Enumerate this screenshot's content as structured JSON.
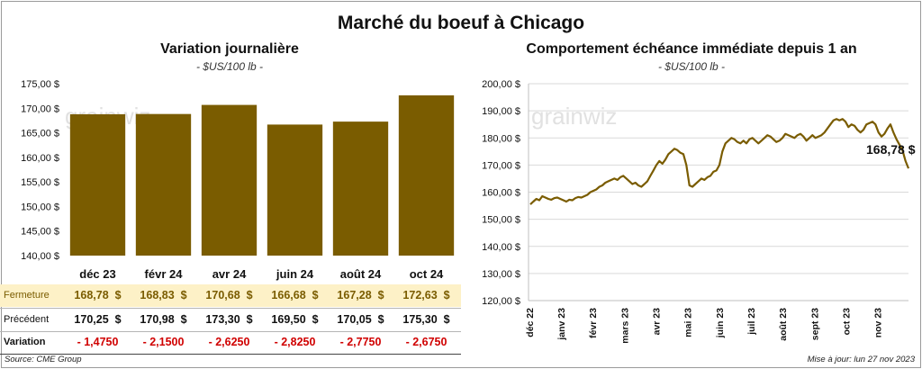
{
  "main_title": "Marché du boeuf à Chicago",
  "chart_data": [
    {
      "type": "bar",
      "title": "Variation  journalière",
      "subtitle": "- $US/100 lb -",
      "categories": [
        "déc 23",
        "févr 24",
        "avr 24",
        "juin 24",
        "août 24",
        "oct 24"
      ],
      "values": [
        168.78,
        168.83,
        170.68,
        166.68,
        167.28,
        172.63
      ],
      "ylim": [
        140,
        175
      ],
      "yticks": [
        "140,00 $",
        "145,00 $",
        "150,00 $",
        "155,00 $",
        "160,00 $",
        "165,00 $",
        "170,00 $",
        "175,00 $"
      ],
      "color": "#7a5c00",
      "watermark": "grainwiz",
      "grid": false
    },
    {
      "type": "line",
      "title": "Comportement  échéance immédiate depuis 1 an",
      "subtitle": "- $US/100 lb -",
      "xticks": [
        "déc 22",
        "janv 23",
        "févr 23",
        "mars 23",
        "avr 23",
        "mai 23",
        "juin 23",
        "juil 23",
        "août 23",
        "sept 23",
        "oct 23",
        "nov 23"
      ],
      "ylim": [
        120,
        200
      ],
      "yticks": [
        "120,00 $",
        "130,00 $",
        "140,00 $",
        "150,00 $",
        "160,00 $",
        "170,00 $",
        "180,00 $",
        "190,00 $",
        "200,00 $"
      ],
      "last_value_label": "168,78 $",
      "color": "#7a5c00",
      "watermark": "grainwiz",
      "grid": true,
      "series": [
        {
          "values": [
            155.5,
            156.5,
            157.5,
            157.0,
            158.5,
            158.0,
            157.5,
            157.2,
            157.8,
            158.0,
            157.5,
            157.0,
            156.5,
            157.2,
            157.0,
            157.8,
            158.2,
            158.0,
            158.5,
            159.0,
            160.0,
            160.5,
            161.0,
            162.0,
            162.5,
            163.5,
            164.0,
            164.5,
            165.0,
            164.5,
            165.5,
            166.0,
            165.0,
            164.0,
            163.0,
            163.5,
            162.5,
            162.0,
            163.0,
            164.0,
            166.0,
            168.0,
            170.0,
            171.5,
            170.5,
            172.0,
            174.0,
            175.0,
            176.0,
            175.5,
            174.5,
            174.0,
            170.0,
            162.5,
            162.0,
            163.0,
            164.0,
            165.0,
            164.5,
            165.5,
            166.0,
            167.5,
            168.0,
            170.0,
            175.0,
            178.0,
            179.0,
            180.0,
            179.5,
            178.5,
            178.0,
            179.0,
            178.0,
            179.5,
            180.0,
            179.0,
            178.0,
            179.0,
            180.0,
            181.0,
            180.5,
            179.5,
            178.5,
            179.0,
            180.0,
            181.5,
            181.0,
            180.5,
            180.0,
            181.0,
            181.5,
            180.5,
            179.0,
            180.0,
            181.0,
            180.0,
            180.5,
            181.0,
            182.0,
            183.5,
            185.0,
            186.5,
            187.0,
            186.5,
            187.0,
            186.0,
            184.0,
            185.0,
            184.5,
            183.0,
            182.0,
            183.0,
            185.0,
            185.5,
            186.0,
            185.0,
            182.0,
            180.5,
            181.5,
            183.5,
            185.0,
            182.0,
            179.5,
            177.5,
            175.5,
            171.5,
            168.78
          ]
        }
      ]
    }
  ],
  "table": {
    "rows": [
      {
        "label": "Fermeture",
        "values": [
          "168,78  $",
          "168,83  $",
          "170,68  $",
          "166,68  $",
          "167,28  $",
          "172,63  $"
        ]
      },
      {
        "label": "Précédent",
        "values": [
          "170,25  $",
          "170,98  $",
          "173,30  $",
          "169,50  $",
          "170,05  $",
          "175,30  $"
        ]
      },
      {
        "label": "Variation",
        "values": [
          "- 1,4750",
          "- 2,1500",
          "- 2,6250",
          "- 2,8250",
          "- 2,7750",
          "- 2,6750"
        ]
      }
    ],
    "highlight_color": "#fdf1c7",
    "negative_color": "#d00000"
  },
  "footer": {
    "source": "Source: CME Group",
    "updated": "Mise à jour: lun 27 nov 2023"
  }
}
